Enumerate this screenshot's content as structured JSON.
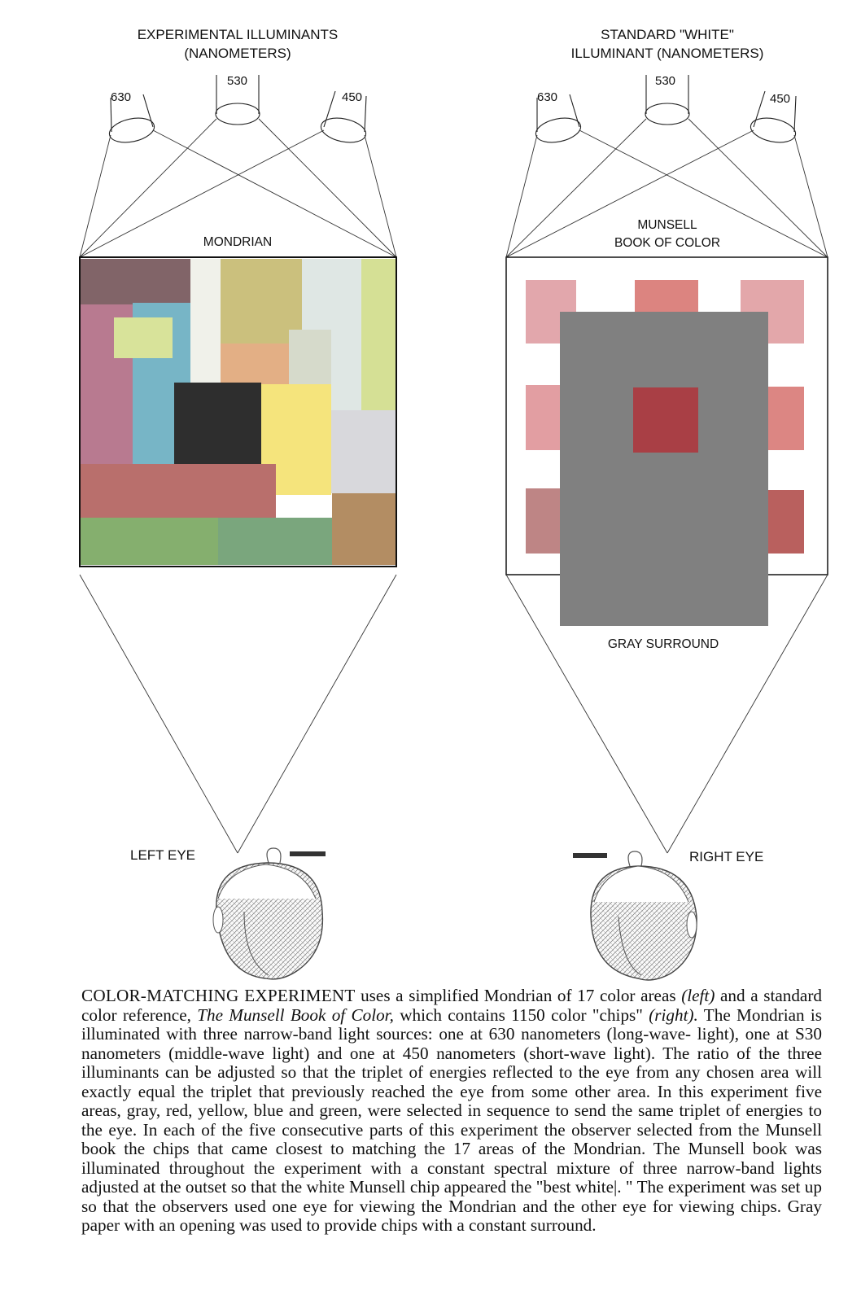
{
  "left_panel": {
    "heading_line1": "EXPERIMENTAL  ILLUMINANTS",
    "heading_line2": "(NANOMETERS)",
    "illuminants": [
      "630",
      "530",
      "450"
    ],
    "display_label": "MONDRIAN",
    "eye_label": "LEFT  EYE",
    "mondrian_colors": [
      "#816468",
      "#b87a90",
      "#77b5c6",
      "#d8e39a",
      "#f0f1ea",
      "#cbc07d",
      "#e3af85",
      "#dfe7e4",
      "#d6dacb",
      "#d5e095",
      "#2e2e2e",
      "#f5e47c",
      "#d8d8dc",
      "#b96f6c",
      "#85af6e",
      "#7aa67d",
      "#b38d63"
    ]
  },
  "right_panel": {
    "heading_line1": "STANDARD \"WHITE\"",
    "heading_line2": "ILLUMINANT  (NANOMETERS)",
    "illuminants": [
      "630",
      "530",
      "450"
    ],
    "display_label_line1": "MUNSELL",
    "display_label_line2": "BOOK OF COLOR",
    "surround_label": "GRAY  SURROUND",
    "eye_label": "RIGHT  EYE",
    "surround_color": "#808080",
    "chip_colors": [
      "#e2a7ac",
      "#dc8480",
      "#e3a7aa",
      "#e29ea2",
      "#a93f45",
      "#dc8683",
      "#be8585",
      "#b9605e"
    ]
  },
  "caption": {
    "lead": "COLOR-MATCHING EXPERIMENT",
    "t1": " uses a simplified Mondrian of 17 color areas ",
    "i1": "(left)",
    "t2": " and a standard color reference, ",
    "i2": "The Munsell Book of Color,",
    "t3": " which contains 1150 color \"chips\" ",
    "i3": "(right).",
    "t4": " The Mondrian is illuminated with three narrow-band light sources: one at 630 nanometers (long-wave- light), one at S30 nanometers (middle-wave light) and one at 450 nanometers (short-wave light). The ratio of the three illuminants can be adjusted so that the triplet of energies reflected to the eye from any chosen area will exactly equal the triplet that previously reached the eye from some other area. In this experiment five areas, gray, red, yellow, blue and green, were selected in sequence to send the same triplet of energies to the eye. In each of the five consecutive parts of this experiment the observer selected from the Munsell book the chips that came closest to matching the 17 areas of the Mondrian. The Munsell book was illuminated throughout the experiment with a constant spectral mixture of three narrow-band lights adjusted at the outset so that the white Munsell chip appeared the \"best white|. \" The experiment was set up so that the observers used one eye for viewing the Mondrian and the other eye for viewing chips. Gray paper with an opening was used to provide chips with a constant surround."
  }
}
